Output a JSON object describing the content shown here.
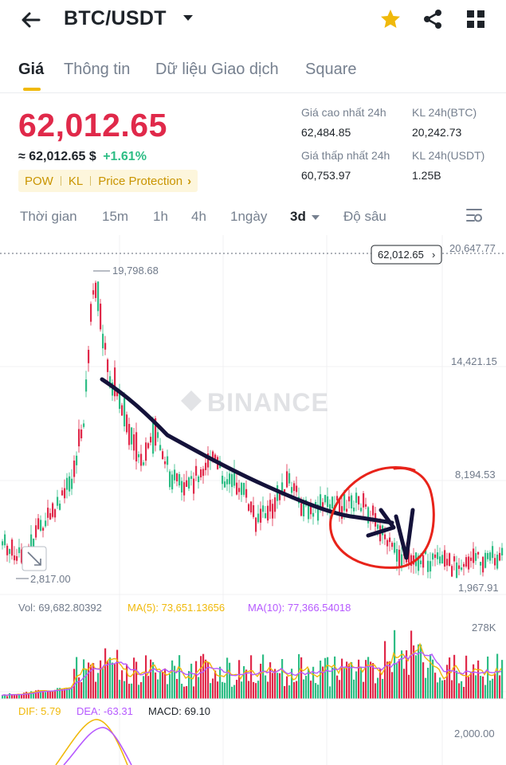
{
  "header": {
    "pair": "BTC/USDT",
    "icons": [
      "back-arrow-icon",
      "caret-down-icon",
      "star-icon",
      "share-icon",
      "grid-icon"
    ]
  },
  "tabs": [
    {
      "label": "Giá",
      "active": true
    },
    {
      "label": "Thông tin",
      "active": false
    },
    {
      "label": "Dữ liệu Giao dịch",
      "active": false
    },
    {
      "label": "Square",
      "active": false
    }
  ],
  "price": {
    "last": "62,012.65",
    "fiat": "≈ 62,012.65 $",
    "change": "+1.61%",
    "tags": [
      "POW",
      "KL",
      "Price Protection"
    ]
  },
  "stats": {
    "high_label": "Giá cao nhất 24h",
    "high_value": "62,484.85",
    "low_label": "Giá thấp nhất 24h",
    "low_value": "60,753.97",
    "vol_btc_label": "KL 24h(BTC)",
    "vol_btc_value": "20,242.73",
    "vol_usdt_label": "KL 24h(USDT)",
    "vol_usdt_value": "1.25B"
  },
  "intervals": [
    {
      "label": "Thời gian",
      "active": false
    },
    {
      "label": "15m",
      "active": false
    },
    {
      "label": "1h",
      "active": false
    },
    {
      "label": "4h",
      "active": false
    },
    {
      "label": "1ngày",
      "active": false
    },
    {
      "label": "3d",
      "active": true
    },
    {
      "label": "Độ sâu",
      "active": false
    }
  ],
  "chart": {
    "watermark": "BINANCE",
    "current_price_tag": "62,012.65",
    "axis_labels": [
      "20,647.77",
      "14,421.15",
      "8,194.53",
      "1,967.91"
    ],
    "high_marker": "19,798.68",
    "low_marker": "2,817.00",
    "volume_line": {
      "vol": "Vol: 69,682.80392",
      "ma5": "MA(5): 73,651.13656",
      "ma10": "MA(10): 77,366.54018"
    },
    "volume_axis": "278K",
    "macd_line": {
      "dif": "DIF: 5.79",
      "dea": "DEA: -63.31",
      "macd": "MACD: 69.10"
    },
    "macd_axis": "2,000.00",
    "colors": {
      "up": "#2ebd85",
      "down": "#e0294a",
      "accent": "#f0b90b",
      "ma5": "#f0b90b",
      "ma10": "#b659ff",
      "annotation_ink": "#14123a",
      "annotation_circle": "#e8231a"
    }
  }
}
